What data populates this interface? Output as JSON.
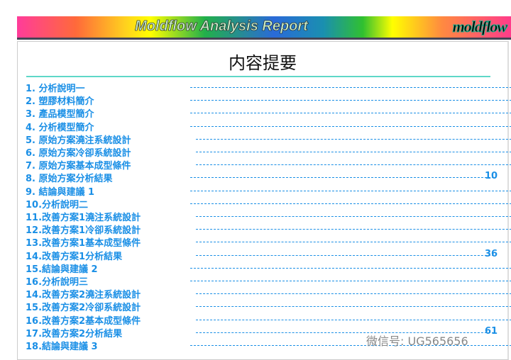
{
  "banner": {
    "title": "Moldflow Analysis Report",
    "logo": "moldflow"
  },
  "heading": "内容提要",
  "toc": [
    {
      "label": "1. 分析說明一",
      "page": ""
    },
    {
      "label": "2. 塑膠材料簡介",
      "page": ""
    },
    {
      "label": "3. 產品模型簡介",
      "page": ""
    },
    {
      "label": "4. 分析模型簡介",
      "page": ""
    },
    {
      "label": "5. 原始方案澆注系統設計",
      "page": ""
    },
    {
      "label": "6. 原始方案冷卻系統設計",
      "page": ""
    },
    {
      "label": "7. 原始方案基本成型條件",
      "page": ""
    },
    {
      "label": "8. 原始方案分析結果",
      "page": "10"
    },
    {
      "label": "9. 結論與建議 1",
      "page": ""
    },
    {
      "label": "10.分析說明二",
      "page": ""
    },
    {
      "label": "11.改善方案1澆注系統設計",
      "page": ""
    },
    {
      "label": "12.改善方案1冷卻系統設計",
      "page": ""
    },
    {
      "label": "13.改善方案1基本成型條件",
      "page": ""
    },
    {
      "label": "14.改善方案1分析結果",
      "page": "36"
    },
    {
      "label": "15.結論與建議 2",
      "page": ""
    },
    {
      "label": "16.分析說明三",
      "page": ""
    },
    {
      "label": "14.改善方案2澆注系統設計",
      "page": ""
    },
    {
      "label": "15.改善方案2冷卻系統設計",
      "page": ""
    },
    {
      "label": "16.改善方案2基本成型條件",
      "page": ""
    },
    {
      "label": "17.改善方案2分析結果",
      "page": "61"
    },
    {
      "label": "18.結論與建議 3",
      "page": ""
    }
  ],
  "watermark": "微信号: UG565656"
}
